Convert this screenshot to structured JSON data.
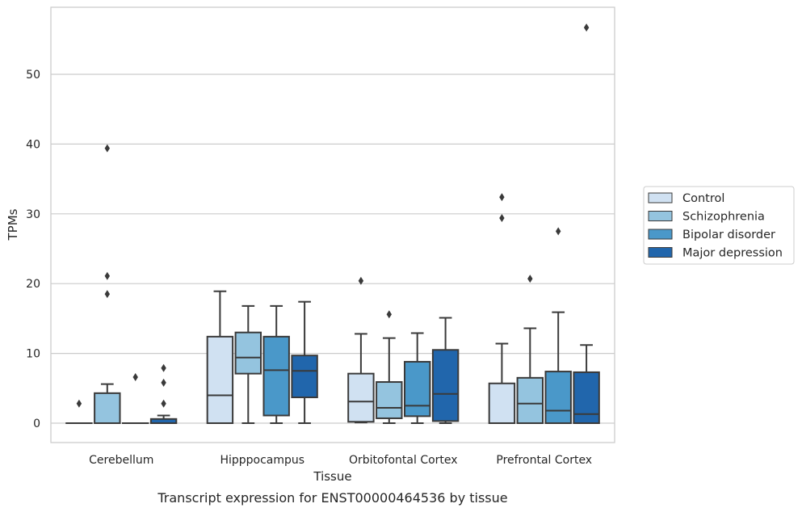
{
  "caption": "Transcript expression for ENST00000464536 by tissue",
  "chart_data": {
    "type": "box",
    "title": "",
    "xlabel": "Tissue",
    "ylabel": "TPMs",
    "ylim": [
      -2.7,
      59.4
    ],
    "yticks": [
      0,
      10,
      20,
      30,
      40,
      50
    ],
    "grid": "horizontal",
    "legend_position": "right",
    "categories": [
      "Cerebellum",
      "Hipppocampus",
      "Orbitofontal Cortex",
      "Prefrontal Cortex"
    ],
    "series": [
      {
        "name": "Control",
        "color": "#d0e1f2",
        "boxes": [
          {
            "min": 0,
            "q1": 0,
            "median": 0,
            "q3": 0,
            "max": 0,
            "outliers": [
              2.8
            ]
          },
          {
            "min": 0,
            "q1": 0,
            "median": 4.0,
            "q3": 12.4,
            "max": 18.9,
            "outliers": []
          },
          {
            "min": 0.1,
            "q1": 0.2,
            "median": 3.1,
            "q3": 7.1,
            "max": 12.8,
            "outliers": [
              20.4
            ]
          },
          {
            "min": 0,
            "q1": 0,
            "median": 0,
            "q3": 5.7,
            "max": 11.4,
            "outliers": [
              29.4,
              32.4
            ]
          }
        ]
      },
      {
        "name": "Schizophrenia",
        "color": "#94c4df",
        "boxes": [
          {
            "min": 0,
            "q1": 0,
            "median": 0,
            "q3": 4.3,
            "max": 5.6,
            "outliers": [
              18.5,
              21.1,
              39.4
            ]
          },
          {
            "min": 0,
            "q1": 7.1,
            "median": 9.4,
            "q3": 13.0,
            "max": 16.8,
            "outliers": []
          },
          {
            "min": 0,
            "q1": 0.7,
            "median": 2.2,
            "q3": 5.9,
            "max": 12.2,
            "outliers": [
              15.6
            ]
          },
          {
            "min": 0,
            "q1": 0,
            "median": 2.8,
            "q3": 6.5,
            "max": 13.6,
            "outliers": [
              20.7
            ]
          }
        ]
      },
      {
        "name": "Bipolar disorder",
        "color": "#4a98c9",
        "boxes": [
          {
            "min": 0,
            "q1": 0,
            "median": 0,
            "q3": 0,
            "max": 0,
            "outliers": [
              6.6
            ]
          },
          {
            "min": 0,
            "q1": 1.1,
            "median": 7.6,
            "q3": 12.4,
            "max": 16.8,
            "outliers": []
          },
          {
            "min": 0,
            "q1": 1.0,
            "median": 2.5,
            "q3": 8.8,
            "max": 12.9,
            "outliers": []
          },
          {
            "min": 0,
            "q1": 0,
            "median": 1.8,
            "q3": 7.4,
            "max": 15.9,
            "outliers": [
              27.5
            ]
          }
        ]
      },
      {
        "name": "Major depression",
        "color": "#2166ac",
        "boxes": [
          {
            "min": 0,
            "q1": 0,
            "median": 0,
            "q3": 0.6,
            "max": 1.1,
            "outliers": [
              2.8,
              5.8,
              7.9
            ]
          },
          {
            "min": 0,
            "q1": 3.7,
            "median": 7.5,
            "q3": 9.7,
            "max": 17.4,
            "outliers": []
          },
          {
            "min": 0,
            "q1": 0.3,
            "median": 4.2,
            "q3": 10.5,
            "max": 15.1,
            "outliers": []
          },
          {
            "min": 0,
            "q1": 0,
            "median": 1.3,
            "q3": 7.3,
            "max": 11.2,
            "outliers": [
              56.7
            ]
          }
        ]
      }
    ]
  }
}
